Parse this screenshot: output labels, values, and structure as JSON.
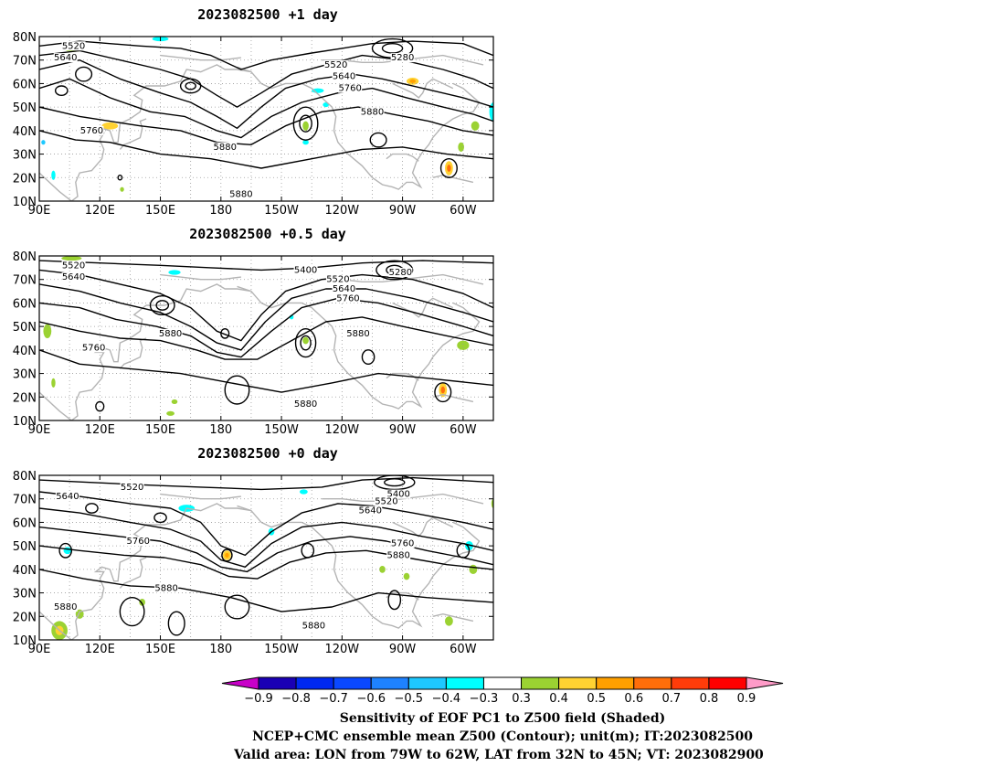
{
  "panels": [
    {
      "title": "2023082500  +1 day",
      "contour_labels": [
        {
          "text": "5520",
          "lon": 107,
          "lat": 76
        },
        {
          "text": "5640",
          "lon": 103,
          "lat": 71
        },
        {
          "text": "5520",
          "lon": 237,
          "lat": 68
        },
        {
          "text": "5640",
          "lon": 241,
          "lat": 63
        },
        {
          "text": "5760",
          "lon": 244,
          "lat": 58
        },
        {
          "text": "5280",
          "lon": 270,
          "lat": 71
        },
        {
          "text": "5880",
          "lon": 255,
          "lat": 48
        },
        {
          "text": "5760",
          "lon": 116,
          "lat": 40
        },
        {
          "text": "5880",
          "lon": 182,
          "lat": 33
        },
        {
          "text": "5880",
          "lon": 190,
          "lat": 13
        }
      ]
    },
    {
      "title": "2023082500  +0.5 day",
      "contour_labels": [
        {
          "text": "5520",
          "lon": 107,
          "lat": 76
        },
        {
          "text": "5640",
          "lon": 107,
          "lat": 71
        },
        {
          "text": "5400",
          "lon": 222,
          "lat": 74
        },
        {
          "text": "5520",
          "lon": 238,
          "lat": 70
        },
        {
          "text": "5640",
          "lon": 241,
          "lat": 66
        },
        {
          "text": "5760",
          "lon": 243,
          "lat": 62
        },
        {
          "text": "5280",
          "lon": 269,
          "lat": 73
        },
        {
          "text": "5880",
          "lon": 155,
          "lat": 47
        },
        {
          "text": "5760",
          "lon": 117,
          "lat": 41
        },
        {
          "text": "5880",
          "lon": 248,
          "lat": 47
        },
        {
          "text": "5880",
          "lon": 222,
          "lat": 17
        }
      ]
    },
    {
      "title": "2023082500  +0 day",
      "contour_labels": [
        {
          "text": "5520",
          "lon": 136,
          "lat": 75
        },
        {
          "text": "5640",
          "lon": 104,
          "lat": 71
        },
        {
          "text": "5400",
          "lon": 268,
          "lat": 72
        },
        {
          "text": "5520",
          "lon": 262,
          "lat": 69
        },
        {
          "text": "5640",
          "lon": 254,
          "lat": 65
        },
        {
          "text": "5760",
          "lon": 139,
          "lat": 52
        },
        {
          "text": "5760",
          "lon": 270,
          "lat": 51
        },
        {
          "text": "5880",
          "lon": 268,
          "lat": 46
        },
        {
          "text": "5880",
          "lon": 153,
          "lat": 32
        },
        {
          "text": "5880",
          "lon": 103,
          "lat": 24
        },
        {
          "text": "5880",
          "lon": 226,
          "lat": 16
        }
      ]
    }
  ],
  "axes": {
    "lon_ticks": [
      "90E",
      "120E",
      "150E",
      "180",
      "150W",
      "120W",
      "90W",
      "60W"
    ],
    "lat_ticks": [
      "80N",
      "70N",
      "60N",
      "50N",
      "40N",
      "30N",
      "20N",
      "10N"
    ],
    "lon_range": [
      90,
      315
    ],
    "lat_range": [
      10,
      80
    ]
  },
  "colorbar": {
    "labels": [
      "-0.9",
      "-0.8",
      "-0.7",
      "-0.6",
      "-0.5",
      "-0.4",
      "-0.3",
      "0.3",
      "0.4",
      "0.5",
      "0.6",
      "0.7",
      "0.8",
      "0.9"
    ],
    "colors": [
      "#1a00b4",
      "#0028f0",
      "#0a48ff",
      "#1e82ff",
      "#1ec8ff",
      "#00ffff",
      "#ffffff",
      "#9bd232",
      "#ffd232",
      "#ffa000",
      "#ff6e0a",
      "#ff3c0a",
      "#ff0000"
    ],
    "left_triangle_color": "#c800c8",
    "right_triangle_color": "#ff9bc8"
  },
  "captions": {
    "line1": "Sensitivity of EOF PC1 to Z500 field (Shaded)",
    "line2": "NCEP+CMC ensemble mean Z500 (Contour); unit(m); IT:2023082500",
    "line3": "Valid area: LON from 79W to 62W, LAT from 32N to 45N; VT: 2023082900"
  }
}
